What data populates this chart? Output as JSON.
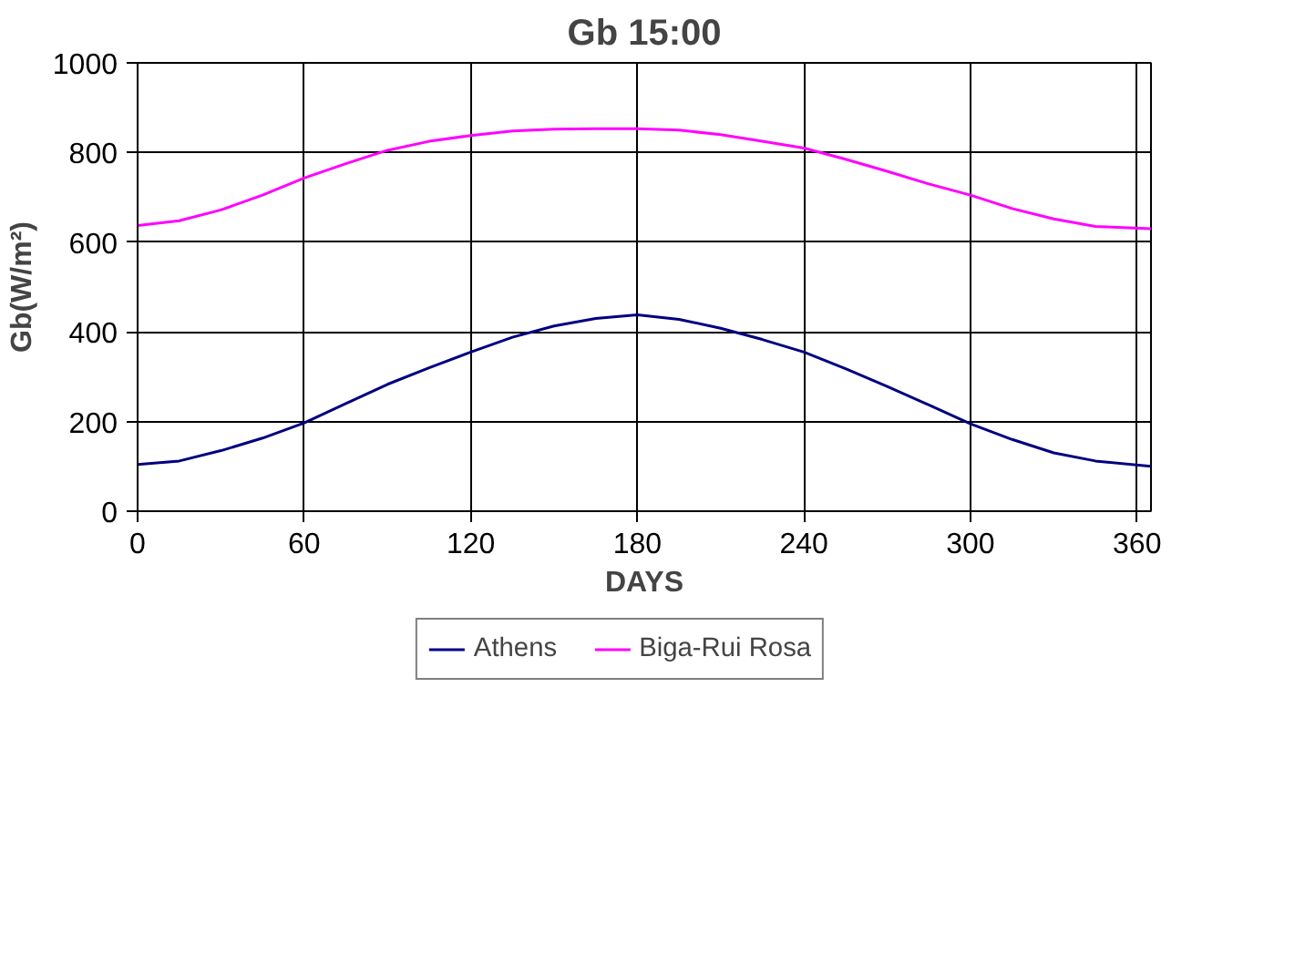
{
  "chart_data": {
    "type": "line",
    "title": "Gb 15:00",
    "xlabel": "DAYS",
    "ylabel": "Gb(W/m²)",
    "x": [
      0,
      15,
      30,
      45,
      60,
      75,
      90,
      105,
      120,
      135,
      150,
      165,
      180,
      195,
      210,
      225,
      240,
      255,
      270,
      285,
      300,
      315,
      330,
      345,
      365
    ],
    "series": [
      {
        "name": "Athens",
        "color": "#000080",
        "values": [
          104,
          112,
          135,
          163,
          197,
          240,
          283,
          320,
          355,
          388,
          413,
          430,
          438,
          428,
          408,
          383,
          355,
          318,
          278,
          237,
          195,
          160,
          130,
          112,
          100
        ]
      },
      {
        "name": "Biga-Rui Rosa",
        "color": "#ff00ff",
        "values": [
          637,
          648,
          672,
          705,
          743,
          775,
          805,
          825,
          838,
          848,
          852,
          853,
          853,
          850,
          840,
          825,
          810,
          785,
          758,
          730,
          705,
          675,
          652,
          635,
          630
        ]
      }
    ],
    "xlim": [
      0,
      365
    ],
    "xticks": [
      0,
      60,
      120,
      180,
      240,
      300,
      360
    ],
    "ylim": [
      0,
      1000
    ],
    "yticks": [
      0,
      200,
      400,
      600,
      800,
      1000
    ],
    "grid": true,
    "legend": "bottom",
    "marker": "none",
    "line_style": "solid"
  }
}
